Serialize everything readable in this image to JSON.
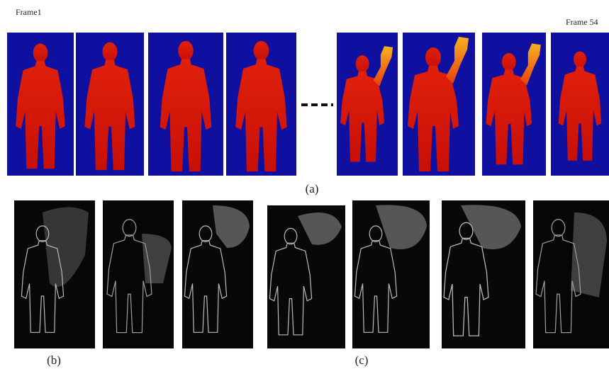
{
  "labels": {
    "frame_first": "Frame1",
    "frame_last": "Frame 54",
    "a": "(a)",
    "b": "(b)",
    "c": "(c)"
  }
}
